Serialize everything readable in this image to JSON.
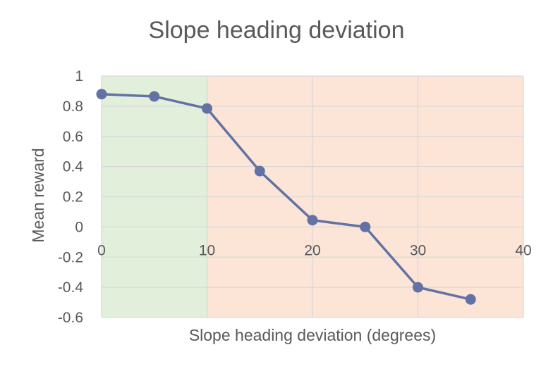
{
  "chart_data": {
    "type": "line",
    "title": "Slope heading deviation",
    "xlabel": "Slope heading deviation (degrees)",
    "ylabel": "Mean reward",
    "xlim": [
      0,
      40
    ],
    "ylim": [
      -0.6,
      1
    ],
    "x_ticks": [
      0,
      10,
      20,
      30,
      40
    ],
    "y_ticks": [
      1,
      0.8,
      0.6,
      0.4,
      0.2,
      0,
      -0.2,
      -0.4,
      -0.6
    ],
    "grid": true,
    "legend": "none",
    "regions": [
      {
        "x_start": 0,
        "x_end": 10,
        "color": "#e2efda"
      },
      {
        "x_start": 10,
        "x_end": 40,
        "color": "#fce4d6"
      }
    ],
    "series": [
      {
        "color": "#6272a4",
        "x": [
          0,
          5,
          10,
          15,
          20,
          25,
          30,
          35
        ],
        "y": [
          0.88,
          0.865,
          0.785,
          0.37,
          0.045,
          0.0,
          -0.4,
          -0.48
        ]
      }
    ]
  }
}
